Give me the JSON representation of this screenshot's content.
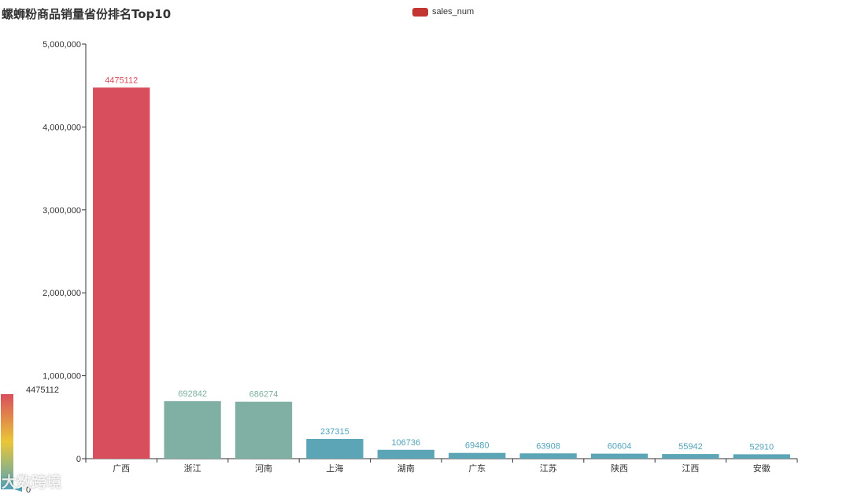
{
  "chart_data": {
    "type": "bar",
    "title": "螺蛳粉商品销量省份排名Top10",
    "legend": [
      "sales_num"
    ],
    "legend_placement": "top-center",
    "categories": [
      "广西",
      "浙江",
      "河南",
      "上海",
      "湖南",
      "广东",
      "江苏",
      "陕西",
      "江西",
      "安徽"
    ],
    "series": [
      {
        "name": "sales_num",
        "values": [
          4475112,
          692842,
          686274,
          237315,
          106736,
          69480,
          63908,
          60604,
          55942,
          52910
        ]
      }
    ],
    "ylim": [
      0,
      5000000
    ],
    "yticks": [
      "0",
      "1,000,000",
      "2,000,000",
      "3,000,000",
      "4,000,000",
      "5,000,000"
    ],
    "grid": false,
    "visual_map": {
      "min": 0,
      "max": 4475112,
      "min_label": "0",
      "max_label": "4475112"
    }
  },
  "colors": {
    "legend": "#c23531",
    "high": "#d94e5d",
    "mid": "#eac736",
    "low": "#50a3ba",
    "axis": "#333333"
  },
  "watermark": "大数跨境"
}
